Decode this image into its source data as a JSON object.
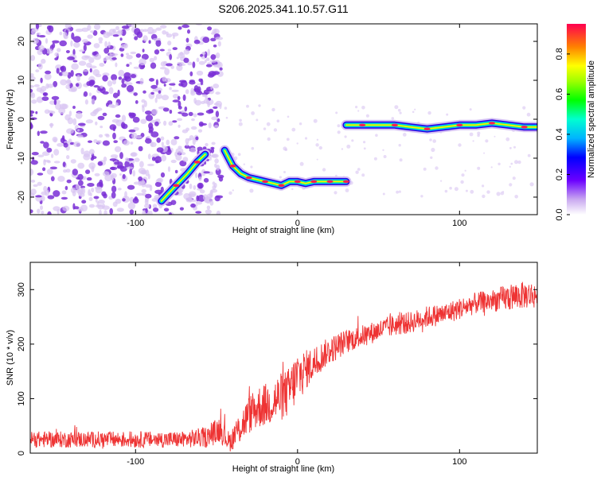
{
  "chart_data": [
    {
      "type": "heatmap",
      "title": "S206.2025.341.10.57.G11",
      "xlabel": "Height of straight line (km)",
      "ylabel": "Frequency (Hz)",
      "xlim": [
        -165,
        148
      ],
      "ylim": [
        -24.5,
        24.5
      ],
      "xticks": [
        -100,
        0,
        100
      ],
      "xtick_labels": [
        "-100",
        "0",
        "100"
      ],
      "yticks": [
        20,
        10,
        0,
        -10,
        -20
      ],
      "ytick_labels": [
        "20",
        "10",
        "0",
        "-10",
        "-20"
      ],
      "colorbar": {
        "label": "Normalized spectral amplitude",
        "range": [
          0,
          0.95
        ],
        "ticks": [
          0.0,
          0.2,
          0.4,
          0.6,
          0.8
        ],
        "tick_labels": [
          "0.0",
          "0.2",
          "0.4",
          "0.6",
          "0.8"
        ]
      },
      "ridge_segments": [
        {
          "name": "lower-ridge",
          "x": [
            -84,
            -75,
            -68,
            -62,
            -57
          ],
          "y": [
            -21,
            -17,
            -14,
            -11,
            -9
          ]
        },
        {
          "name": "middle-ridge",
          "x": [
            -45,
            -40,
            -35,
            -30,
            -25,
            -20,
            -15,
            -10,
            -5,
            0,
            5,
            10,
            15,
            20,
            25,
            30
          ],
          "y": [
            -8,
            -12,
            -14,
            -15,
            -15.5,
            -16,
            -16.5,
            -17,
            -16,
            -16,
            -16.5,
            -16,
            -16,
            -16,
            -16,
            -16
          ]
        },
        {
          "name": "upper-ridge",
          "x": [
            30,
            40,
            50,
            60,
            70,
            80,
            90,
            100,
            110,
            120,
            130,
            140,
            148
          ],
          "y": [
            -1.5,
            -1.5,
            -1.5,
            -1.5,
            -2,
            -2.5,
            -2,
            -1.5,
            -1.5,
            -1,
            -1.5,
            -2,
            -2
          ]
        }
      ]
    },
    {
      "type": "line",
      "xlabel": "Height of straight line (km)",
      "ylabel": "SNR (10 * v/v)",
      "xlim": [
        -165,
        148
      ],
      "ylim": [
        0,
        350
      ],
      "xticks": [
        -100,
        0,
        100
      ],
      "xtick_labels": [
        "-100",
        "0",
        "100"
      ],
      "yticks": [
        0,
        100,
        200,
        300
      ],
      "ytick_labels": [
        "0",
        "100",
        "200",
        "300"
      ],
      "series": [
        {
          "name": "SNR",
          "color": "#ee3333",
          "x": [
            -165,
            -150,
            -130,
            -110,
            -90,
            -70,
            -55,
            -48,
            -42,
            -36,
            -30,
            -24,
            -18,
            -12,
            -6,
            0,
            6,
            12,
            18,
            24,
            30,
            40,
            50,
            60,
            70,
            80,
            90,
            100,
            110,
            120,
            130,
            140,
            148
          ],
          "y": [
            25,
            25,
            25,
            25,
            25,
            25,
            30,
            45,
            20,
            45,
            70,
            85,
            90,
            100,
            110,
            140,
            155,
            170,
            185,
            195,
            205,
            215,
            225,
            235,
            240,
            250,
            255,
            265,
            275,
            280,
            285,
            290,
            290
          ],
          "noise": [
            15,
            15,
            15,
            15,
            15,
            15,
            20,
            25,
            18,
            30,
            35,
            40,
            40,
            45,
            45,
            50,
            35,
            30,
            25,
            25,
            22,
            20,
            20,
            20,
            20,
            20,
            20,
            20,
            20,
            20,
            25,
            25,
            25
          ]
        }
      ]
    }
  ],
  "colors": {
    "speckle_dark": "#7a2fd6",
    "speckle_light": "#d9c4f2",
    "snr_line": "#ee3333"
  }
}
